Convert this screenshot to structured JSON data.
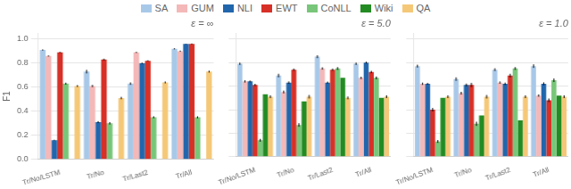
{
  "chart_data": [
    {
      "type": "bar",
      "title": "ε = ∞",
      "ylabel": "F1",
      "categories": [
        "Tr/No/LSTM",
        "Tr/No",
        "Tr/Last2",
        "Tr/All"
      ],
      "series": [
        {
          "name": "SA",
          "color": "#a8c8e8",
          "values": [
            0.91,
            0.73,
            0.63,
            0.92
          ],
          "errors": [
            0.005,
            0.015,
            0.01,
            0.005
          ]
        },
        {
          "name": "GUM",
          "color": "#f4b8b8",
          "values": [
            0.86,
            0.61,
            0.89,
            0.9
          ],
          "errors": [
            0.005,
            0.01,
            0.005,
            0.005
          ]
        },
        {
          "name": "NLI",
          "color": "#2166ac",
          "values": [
            0.16,
            0.31,
            0.8,
            0.96
          ],
          "errors": [
            0.003,
            0.008,
            0.005,
            0.002
          ]
        },
        {
          "name": "EWT",
          "color": "#d73027",
          "values": [
            0.89,
            0.83,
            0.82,
            0.96
          ],
          "errors": [
            0.005,
            0.008,
            0.005,
            0.004
          ]
        },
        {
          "name": "CoNLL",
          "color": "#78c679",
          "values": [
            0.63,
            0.3,
            0.35,
            0.35
          ],
          "errors": [
            0.008,
            0.01,
            0.008,
            0.008
          ]
        },
        {
          "name": "Wiki",
          "color": "#238b23",
          "values": [
            0.0,
            0.0,
            0.0,
            0.0
          ],
          "errors": [
            0.0,
            0.0,
            0.0,
            0.0
          ]
        },
        {
          "name": "QA",
          "color": "#f5c878",
          "values": [
            0.61,
            0.51,
            0.64,
            0.73
          ],
          "errors": [
            0.008,
            0.01,
            0.008,
            0.008
          ]
        }
      ],
      "ylim": [
        0.0,
        1.05
      ],
      "yticks": [
        {
          "value": 0.0,
          "label": "0.0"
        },
        0.2,
        0.4,
        0.6,
        0.8,
        {
          "value": 1.0,
          "label": "1.0"
        }
      ],
      "grid": true
    },
    {
      "type": "bar",
      "title": "ε = 5.0",
      "categories": [
        "Tr/No/LSTM",
        "Tr/No",
        "Tr/Last2",
        "Tr/All"
      ],
      "series": [
        {
          "name": "SA",
          "color": "#a8c8e8",
          "values": [
            0.79,
            0.69,
            0.85,
            0.79
          ],
          "errors": [
            0.01,
            0.015,
            0.012,
            0.01
          ]
        },
        {
          "name": "GUM",
          "color": "#f4b8b8",
          "values": [
            0.64,
            0.55,
            0.75,
            0.67
          ],
          "errors": [
            0.01,
            0.012,
            0.01,
            0.01
          ]
        },
        {
          "name": "NLI",
          "color": "#2166ac",
          "values": [
            0.64,
            0.63,
            0.63,
            0.8
          ],
          "errors": [
            0.008,
            0.01,
            0.008,
            0.008
          ]
        },
        {
          "name": "EWT",
          "color": "#d73027",
          "values": [
            0.61,
            0.74,
            0.74,
            0.72
          ],
          "errors": [
            0.01,
            0.01,
            0.01,
            0.01
          ]
        },
        {
          "name": "CoNLL",
          "color": "#78c679",
          "values": [
            0.14,
            0.27,
            0.75,
            0.67
          ],
          "errors": [
            0.012,
            0.015,
            0.012,
            0.012
          ]
        },
        {
          "name": "Wiki",
          "color": "#238b23",
          "values": [
            0.53,
            0.47,
            0.67,
            0.5
          ],
          "errors": [
            0.0,
            0.0,
            0.0,
            0.0
          ]
        },
        {
          "name": "QA",
          "color": "#f5c878",
          "values": [
            0.51,
            0.51,
            0.5,
            0.51
          ],
          "errors": [
            0.012,
            0.015,
            0.012,
            0.012
          ]
        }
      ],
      "ylim": [
        0.0,
        1.05
      ],
      "yticks": [
        {
          "value": 0.0,
          "label": "0.0"
        },
        0.2,
        0.4,
        0.6,
        0.8,
        {
          "value": 1.0,
          "label": "1.0"
        }
      ],
      "tick_labels": "x",
      "grid": true,
      "legend": "top"
    },
    {
      "type": "bar",
      "title": "ε = 1.0",
      "categories": [
        "Tr/No/LSTM",
        "Tr/No",
        "Tr/Last2",
        "Tr/All"
      ],
      "series": [
        {
          "name": "SA",
          "color": "#a8c8e8",
          "values": [
            0.77,
            0.66,
            0.74,
            0.77
          ],
          "errors": [
            0.012,
            0.015,
            0.012,
            0.015
          ]
        },
        {
          "name": "GUM",
          "color": "#f4b8b8",
          "values": [
            0.62,
            0.54,
            0.63,
            0.52
          ],
          "errors": [
            0.01,
            0.012,
            0.01,
            0.01
          ]
        },
        {
          "name": "NLI",
          "color": "#2166ac",
          "values": [
            0.62,
            0.61,
            0.62,
            0.62
          ],
          "errors": [
            0.008,
            0.012,
            0.01,
            0.012
          ]
        },
        {
          "name": "EWT",
          "color": "#d73027",
          "values": [
            0.4,
            0.61,
            0.69,
            0.48
          ],
          "errors": [
            0.015,
            0.018,
            0.015,
            0.015
          ]
        },
        {
          "name": "CoNLL",
          "color": "#78c679",
          "values": [
            0.13,
            0.28,
            0.75,
            0.65
          ],
          "errors": [
            0.012,
            0.018,
            0.012,
            0.015
          ]
        },
        {
          "name": "Wiki",
          "color": "#238b23",
          "values": [
            0.5,
            0.35,
            0.31,
            0.52
          ],
          "errors": [
            0.0,
            0.0,
            0.0,
            0.0
          ]
        },
        {
          "name": "QA",
          "color": "#f5c878",
          "values": [
            0.51,
            0.51,
            0.51,
            0.51
          ],
          "errors": [
            0.012,
            0.015,
            0.012,
            0.012
          ]
        }
      ],
      "ylim": [
        0.0,
        1.05
      ],
      "yticks": [
        {
          "value": 0.0,
          "label": "0.0"
        },
        0.2,
        0.4,
        0.6,
        0.8,
        {
          "value": 1.0,
          "label": "1.0"
        }
      ],
      "tick_labels": "x",
      "grid": true
    }
  ]
}
